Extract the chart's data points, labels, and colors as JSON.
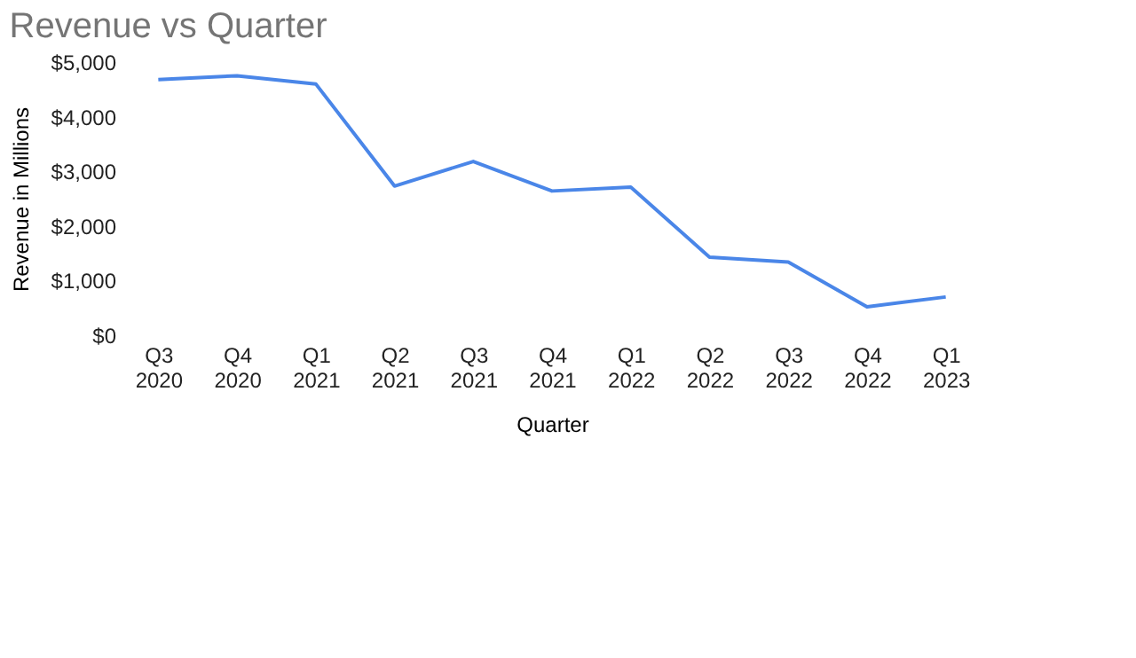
{
  "chart_data": {
    "type": "line",
    "title": "Revenue vs Quarter",
    "xlabel": "Quarter",
    "ylabel": "Revenue in Millions",
    "categories": [
      "Q3 2020",
      "Q4 2020",
      "Q1 2021",
      "Q2 2021",
      "Q3 2021",
      "Q4 2021",
      "Q1 2022",
      "Q2 2022",
      "Q3 2022",
      "Q4 2022",
      "Q1 2023"
    ],
    "series": [
      {
        "color": "#4a86e8",
        "values": [
          4680,
          4750,
          4600,
          2730,
          3180,
          2640,
          2710,
          1430,
          1340,
          520,
          700
        ]
      }
    ],
    "ylim": [
      0,
      5000
    ],
    "yticks": [
      {
        "value": 0,
        "label": "$0"
      },
      {
        "value": 1000,
        "label": "$1,000"
      },
      {
        "value": 2000,
        "label": "$2,000"
      },
      {
        "value": 3000,
        "label": "$3,000"
      },
      {
        "value": 4000,
        "label": "$4,000"
      },
      {
        "value": 5000,
        "label": "$5,000"
      }
    ],
    "grid": false,
    "legend": false,
    "marker": "none",
    "line_style": "solid"
  }
}
